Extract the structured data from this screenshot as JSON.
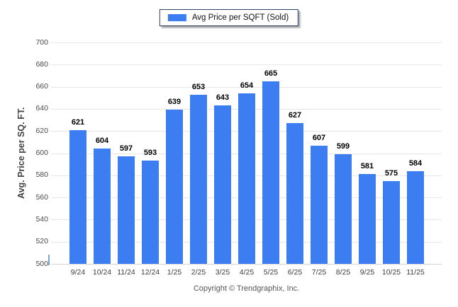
{
  "legend": {
    "label": "Avg Price per SQFT (Sold)"
  },
  "footer": {
    "copyright": "Copyright © Trendgraphix, Inc."
  },
  "colors": {
    "bar": "#3c7df2",
    "legend_border": "#2e4164",
    "gridline": "#e7e7e7"
  },
  "chart_data": {
    "type": "bar",
    "title": "Avg Price per SQFT (Sold)",
    "categories": [
      "9/24",
      "10/24",
      "11/24",
      "12/24",
      "1/25",
      "2/25",
      "3/25",
      "4/25",
      "5/25",
      "6/25",
      "7/25",
      "8/25",
      "9/25",
      "10/25",
      "11/25"
    ],
    "values": [
      621,
      604,
      597,
      593,
      639,
      653,
      643,
      654,
      665,
      627,
      607,
      599,
      581,
      575,
      584
    ],
    "xlabel": "",
    "ylabel": "Avg. Price per SQ. FT.",
    "ylim": [
      500,
      700
    ],
    "ytick_step": 20,
    "grid": true,
    "legend_position": "top-center",
    "data_labels": true
  }
}
